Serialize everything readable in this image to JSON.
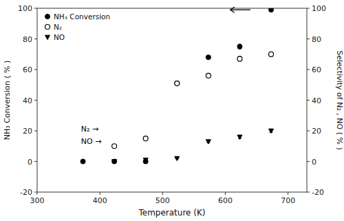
{
  "chart_data": {
    "type": "scatter",
    "x_label": "Temperature (K)",
    "y_label": "NH₃ Conversion ( % )",
    "y2_label": "Selectivity of N₂ , NO ( % )",
    "xlim": [
      300,
      730
    ],
    "xticks": [
      300,
      400,
      500,
      600,
      700
    ],
    "ylim": [
      -20,
      100
    ],
    "yticks": [
      -20,
      0,
      20,
      40,
      60,
      80,
      100
    ],
    "y2lim": [
      -20,
      100
    ],
    "y2ticks": [
      -20,
      0,
      20,
      40,
      60,
      80,
      100
    ],
    "grid": false,
    "legend": "upper-left",
    "series": [
      {
        "name": "NH₃ Conversion",
        "color": "#000000",
        "marker": "circle",
        "x": [
          373,
          423,
          473,
          523,
          573,
          623,
          673
        ],
        "values": [
          0,
          0,
          0,
          51,
          68,
          75,
          99
        ],
        "errors": [
          0,
          0.5,
          0.5,
          1.0,
          1.0,
          1.5,
          1.0
        ]
      },
      {
        "name": "N₂",
        "color": "#000000",
        "marker": "open-circle",
        "axis": "y2",
        "x": [
          423,
          473,
          523,
          573,
          623,
          673
        ],
        "values": [
          10,
          15,
          51,
          56,
          67,
          70
        ],
        "errors": [
          0.5,
          0.5,
          1.0,
          1.0,
          1.5,
          1.5
        ]
      },
      {
        "name": "NO",
        "color": "#000000",
        "marker": "triangle-down",
        "axis": "y2",
        "x": [
          423,
          473,
          523,
          573,
          623,
          673
        ],
        "values": [
          0,
          1,
          2,
          13,
          16,
          20
        ],
        "errors": [
          0.3,
          0.3,
          0.3,
          0.8,
          1.0,
          1.0
        ]
      }
    ],
    "annotations": [
      {
        "text": "N₂ →",
        "x": 370,
        "y": 21
      },
      {
        "text": "NO →",
        "x": 370,
        "y": 13
      }
    ],
    "arrows": [
      {
        "x": 640,
        "x_end": 608,
        "y": 99
      }
    ]
  }
}
